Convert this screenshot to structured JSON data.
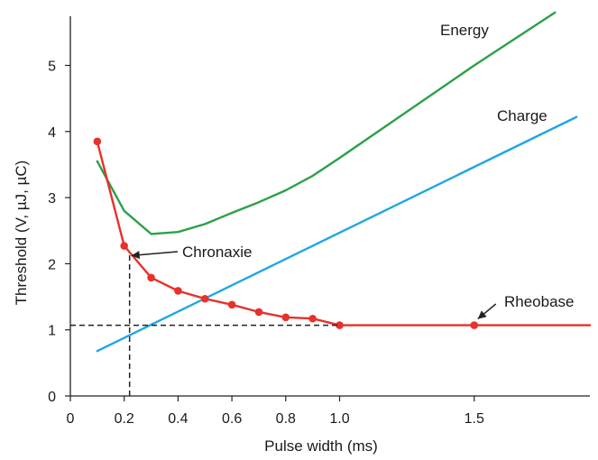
{
  "chart_data": {
    "type": "line",
    "title": "",
    "xlabel": "Pulse width (ms)",
    "ylabel": "Threshold (V, µJ, µC)",
    "xlim": [
      0,
      1.93
    ],
    "ylim": [
      0,
      5.9
    ],
    "x_ticks": [
      0,
      0.2,
      0.4,
      0.6,
      0.8,
      1.0,
      1.5
    ],
    "x_tick_labels": [
      "0",
      "0.2",
      "0.4",
      "0.6",
      "0.8",
      "1.0",
      "1.5"
    ],
    "y_ticks": [
      0,
      1,
      2,
      3,
      4,
      5
    ],
    "y_tick_labels": [
      "0",
      "1",
      "2",
      "3",
      "4",
      "5"
    ],
    "grid": false,
    "series": [
      {
        "name": "Energy",
        "color": "#2ca048",
        "markers": false,
        "points": [
          [
            0.1,
            3.55
          ],
          [
            0.2,
            2.8
          ],
          [
            0.3,
            2.45
          ],
          [
            0.4,
            2.48
          ],
          [
            0.5,
            2.6
          ],
          [
            0.6,
            2.77
          ],
          [
            0.7,
            2.93
          ],
          [
            0.8,
            3.11
          ],
          [
            0.9,
            3.33
          ],
          [
            1.0,
            3.6
          ],
          [
            1.5,
            5.0
          ],
          [
            1.8,
            5.8
          ]
        ]
      },
      {
        "name": "Charge",
        "color": "#1ea7e1",
        "markers": false,
        "points": [
          [
            0.1,
            0.68
          ],
          [
            1.88,
            4.22
          ]
        ]
      },
      {
        "name": "",
        "color": "#e8312b",
        "markers": true,
        "points": [
          [
            0.1,
            3.85
          ],
          [
            0.2,
            2.27
          ],
          [
            0.3,
            1.79
          ],
          [
            0.4,
            1.59
          ],
          [
            0.5,
            1.47
          ],
          [
            0.6,
            1.38
          ],
          [
            0.7,
            1.27
          ],
          [
            0.8,
            1.19
          ],
          [
            0.9,
            1.17
          ],
          [
            1.0,
            1.07
          ],
          [
            1.5,
            1.07
          ],
          [
            1.93,
            1.07
          ]
        ],
        "marker_count": 11
      }
    ],
    "annotations": {
      "chronaxie": {
        "text": "Chronaxie",
        "x": 0.22,
        "y": 2.15
      },
      "rheobase": {
        "text": "Rheobase",
        "x": 1.5,
        "y": 1.07
      }
    }
  }
}
